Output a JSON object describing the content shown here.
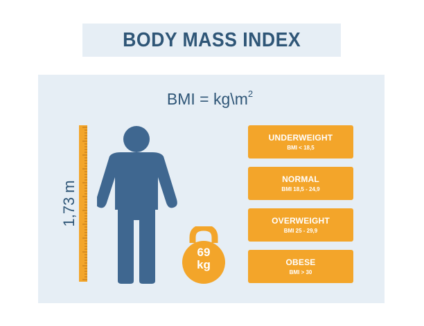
{
  "header": {
    "title": "BODY MASS INDEX"
  },
  "formula": {
    "text": "BMI = kg\\m",
    "superscript": "2"
  },
  "height": {
    "label": "1,73 m"
  },
  "weight": {
    "value": "69",
    "unit": "kg"
  },
  "categories": [
    {
      "name": "UNDERWEIGHT",
      "range": "BMI < 18,5"
    },
    {
      "name": "NORMAL",
      "range": "BMI 18,5 - 24,9"
    },
    {
      "name": "OVERWEIGHT",
      "range": "BMI 25 - 29,9"
    },
    {
      "name": "OBESE",
      "range": "BMI > 30"
    }
  ],
  "icons": [
    "person-icon",
    "ruler-icon",
    "kettlebell-icon"
  ],
  "colors": {
    "primary": "#2f5677",
    "figure": "#3f6790",
    "accent": "#f3a52a",
    "panel": "#e6eef5"
  }
}
